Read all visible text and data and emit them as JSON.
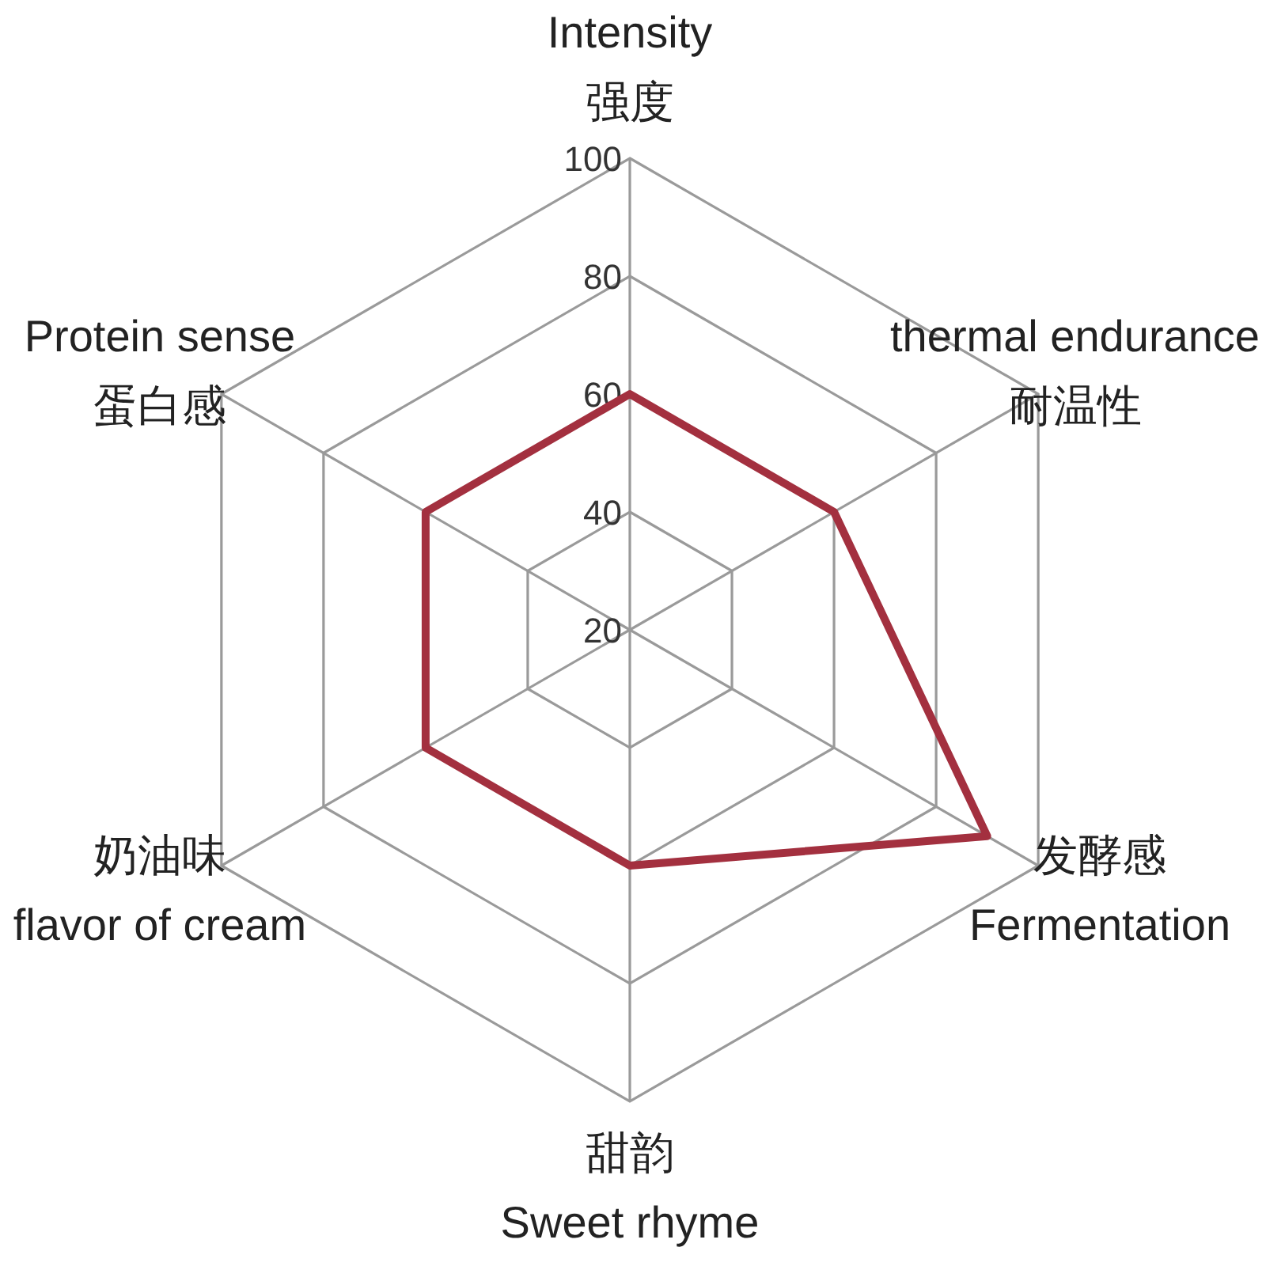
{
  "chart_data": {
    "type": "radar",
    "categories": [
      "Intensity\n强度",
      "thermal endurance\n耐温性",
      "发酵感\nFermentation",
      "甜韵\nSweet rhyme",
      "奶油味\nflavor of cream",
      "Protein sense\n蛋白感"
    ],
    "series": [
      {
        "color": "#a3303f",
        "values": [
          60,
          60,
          90,
          60,
          60,
          60
        ]
      }
    ],
    "ylim": [
      20,
      100
    ],
    "yticks": [
      20,
      40,
      60,
      80,
      100
    ],
    "grid": true,
    "marker": "none",
    "line_style": "solid"
  }
}
